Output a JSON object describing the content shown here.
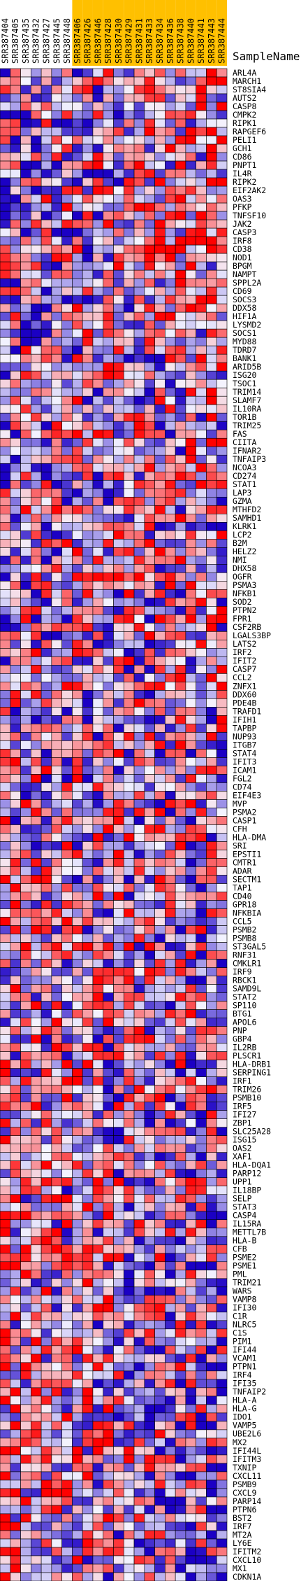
{
  "chart_data": {
    "type": "heatmap",
    "row_header": "SampleName",
    "columns": [
      {
        "id": "SRR387404",
        "highlight": false
      },
      {
        "id": "SRR387405",
        "highlight": false
      },
      {
        "id": "SRR387435",
        "highlight": false
      },
      {
        "id": "SRR387432",
        "highlight": false
      },
      {
        "id": "SRR387427",
        "highlight": false
      },
      {
        "id": "SRR387445",
        "highlight": false
      },
      {
        "id": "SRR387448",
        "highlight": false
      },
      {
        "id": "SRR387406",
        "highlight": true
      },
      {
        "id": "SRR387426",
        "highlight": true
      },
      {
        "id": "SRR387446",
        "highlight": true
      },
      {
        "id": "SRR387428",
        "highlight": true
      },
      {
        "id": "SRR387430",
        "highlight": true
      },
      {
        "id": "SRR387429",
        "highlight": true
      },
      {
        "id": "SRR387431",
        "highlight": true
      },
      {
        "id": "SRR387433",
        "highlight": true
      },
      {
        "id": "SRR387434",
        "highlight": true
      },
      {
        "id": "SRR387436",
        "highlight": true
      },
      {
        "id": "SRR387438",
        "highlight": true
      },
      {
        "id": "SRR387440",
        "highlight": true
      },
      {
        "id": "SRR387441",
        "highlight": true
      },
      {
        "id": "SRR387443",
        "highlight": true
      },
      {
        "id": "SRR387444",
        "highlight": true
      }
    ],
    "rows": [
      "ARL4A",
      "MARCH1",
      "ST8SIA4",
      "AUTS2",
      "CASP8",
      "CMPK2",
      "RIPK1",
      "RAPGEF6",
      "PELI1",
      "GCH1",
      "CD86",
      "PNPT1",
      "IL4R",
      "RIPK2",
      "EIF2AK2",
      "OAS3",
      "PFKP",
      "TNFSF10",
      "JAK2",
      "CASP3",
      "IRF8",
      "CD38",
      "NOD1",
      "BPGM",
      "NAMPT",
      "SPPL2A",
      "CD69",
      "SOCS3",
      "DDX58",
      "HIF1A",
      "LYSMD2",
      "SOCS1",
      "MYD88",
      "TDRD7",
      "BANK1",
      "ARID5B",
      "ISG20",
      "TSOC1",
      "TRIM14",
      "SLAMF7",
      "IL10RA",
      "TOR1B",
      "TRIM25",
      "FAS",
      "CIITA",
      "IFNAR2",
      "TNFAIP3",
      "NCOA3",
      "CD274",
      "STAT1",
      "LAP3",
      "GZMA",
      "MTHFD2",
      "SAMHD1",
      "KLRK1",
      "LCP2",
      "B2M",
      "HELZ2",
      "NMI",
      "DHX58",
      "OGFR",
      "PSMA3",
      "NFKB1",
      "SOD2",
      "PTPN2",
      "FPR1",
      "CSF2RB",
      "LGALS3BP",
      "LATS2",
      "IRF2",
      "IFIT2",
      "CASP7",
      "CCL2",
      "ZNFX1",
      "DDX60",
      "PDE4B",
      "TRAFD1",
      "IFIH1",
      "TAPBP",
      "NUP93",
      "ITGB7",
      "STAT4",
      "IFIT3",
      "ICAM1",
      "FGL2",
      "CD74",
      "EIF4E3",
      "MVP",
      "PSMA2",
      "CASP1",
      "CFH",
      "HLA-DMA",
      "SRI",
      "EPSTI1",
      "CMTR1",
      "ADAR",
      "SECTM1",
      "TAP1",
      "CD40",
      "GPR18",
      "NFKBIA",
      "CCL5",
      "PSMB2",
      "PSMB8",
      "ST3GAL5",
      "RNF31",
      "CMKLR1",
      "IRF9",
      "RBCK1",
      "SAMD9L",
      "STAT2",
      "SP110",
      "BTG1",
      "APOL6",
      "PNP",
      "GBP4",
      "IL2RB",
      "PLSCR1",
      "HLA-DRB1",
      "SERPING1",
      "IRF1",
      "TRIM26",
      "PSMB10",
      "IRF5",
      "IFI27",
      "ZBP1",
      "SLC25A28",
      "ISG15",
      "OAS2",
      "XAF1",
      "HLA-DQA1",
      "PARP12",
      "UPP1",
      "IL18BP",
      "SELP",
      "STAT3",
      "CASP4",
      "IL15RA",
      "METTL7B",
      "HLA-B",
      "CFB",
      "PSME2",
      "PSME1",
      "PML",
      "TRIM21",
      "WARS",
      "VAMP8",
      "IFI30",
      "C1R",
      "NLRC5",
      "C1S",
      "PIM1",
      "IFI44",
      "VCAM1",
      "PTPN1",
      "IRF4",
      "IFI35",
      "TNFAIP2",
      "HLA-A",
      "HLA-G",
      "IDO1",
      "VAMP5",
      "UBE2L6",
      "MX2",
      "IFI44L",
      "IFITM3",
      "TXNIP",
      "CXCL11",
      "PSMB9",
      "CXCL9",
      "PARP14",
      "PTPN6",
      "BST2",
      "IRF7",
      "MT2A",
      "LY6E",
      "IFITM2",
      "CXCL10",
      "MX1",
      "CDKN1A"
    ],
    "color_scale": {
      "low": "#1b00c4",
      "mid": "#f4f4ff",
      "high": "#ff0000"
    },
    "header_highlight_color": "#ffc000",
    "cells_seed": 987654321
  }
}
